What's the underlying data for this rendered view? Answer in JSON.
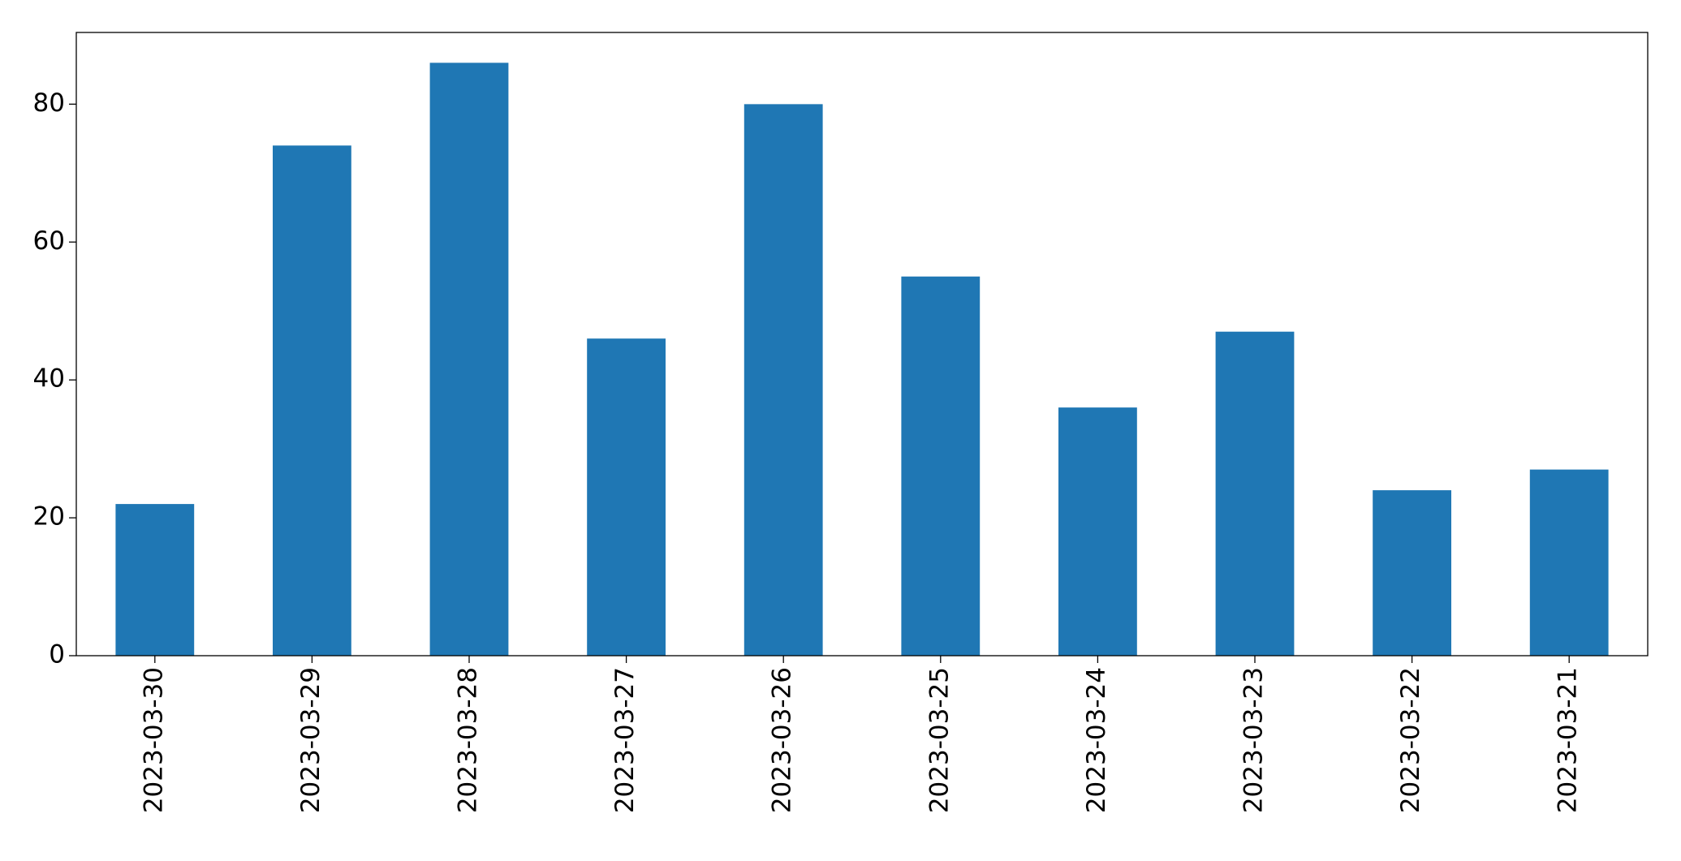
{
  "chart_data": {
    "type": "bar",
    "categories": [
      "2023-03-30",
      "2023-03-29",
      "2023-03-28",
      "2023-03-27",
      "2023-03-26",
      "2023-03-25",
      "2023-03-24",
      "2023-03-23",
      "2023-03-22",
      "2023-03-21"
    ],
    "values": [
      22,
      74,
      86,
      46,
      80,
      55,
      36,
      47,
      24,
      27
    ],
    "color": "#1f77b4",
    "ylim": [
      0,
      90.4
    ],
    "yticks": [
      0,
      20,
      40,
      60,
      80
    ],
    "grid": false
  }
}
